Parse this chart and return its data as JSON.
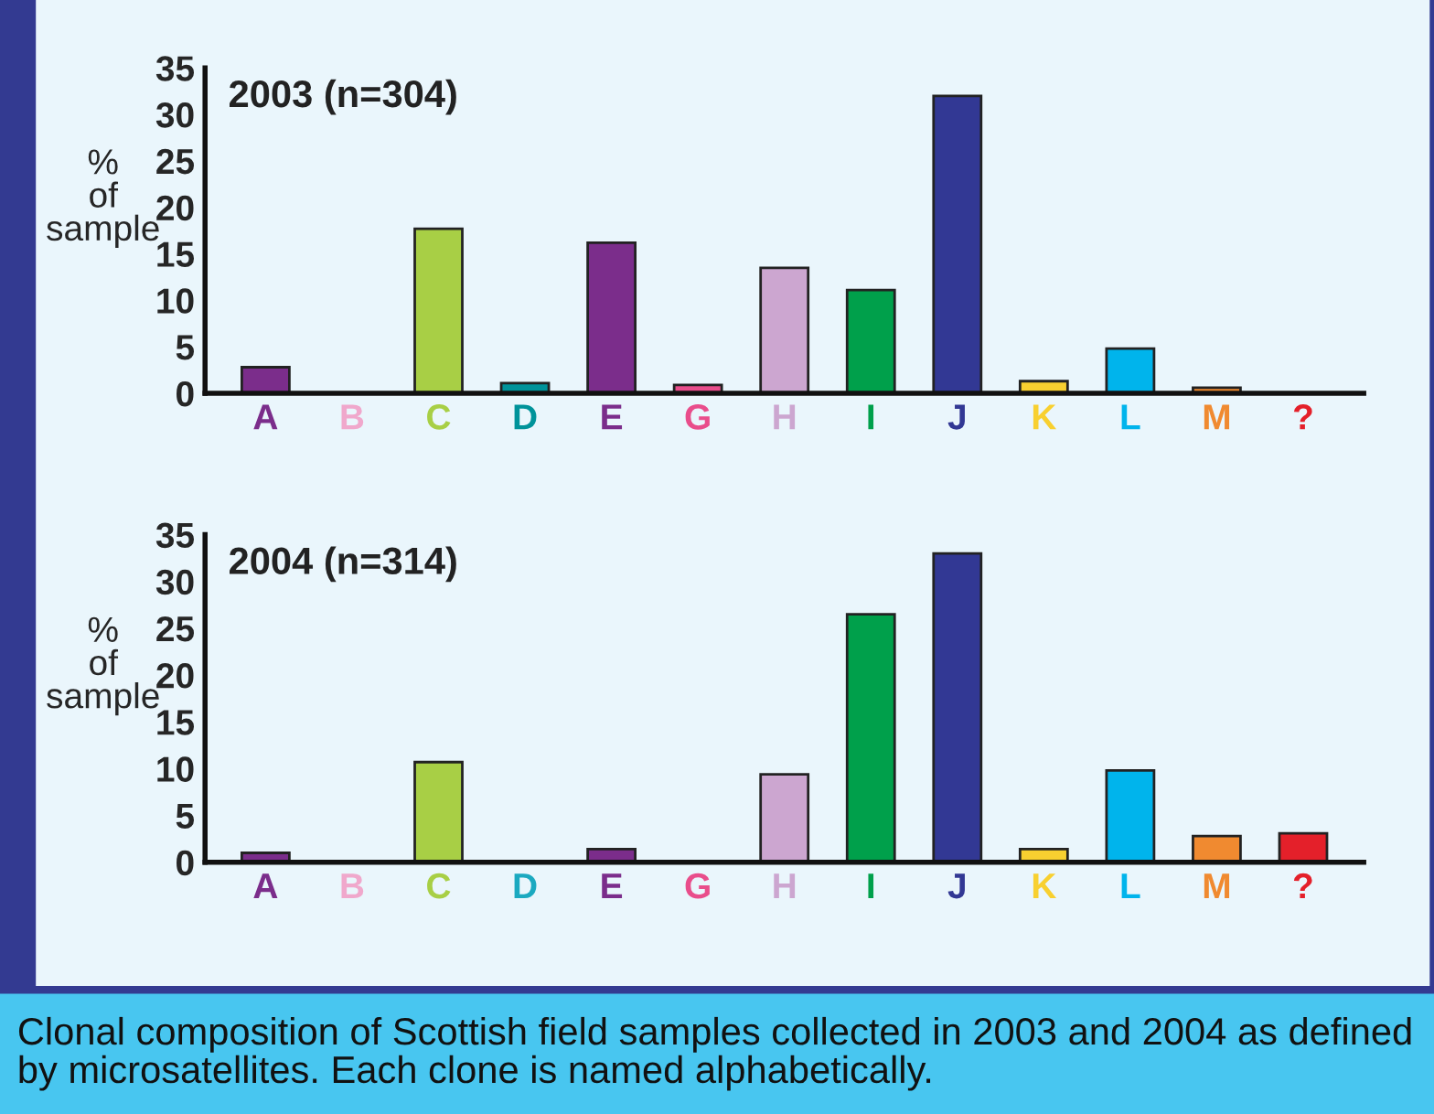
{
  "chart_data": [
    {
      "type": "bar",
      "title": "2003 (n=304)",
      "ylabel": "% of sample",
      "categories": [
        "A",
        "B",
        "C",
        "D",
        "E",
        "G",
        "H",
        "I",
        "J",
        "K",
        "L",
        "M",
        "?"
      ],
      "values": [
        2.8,
        0,
        17.7,
        1.1,
        16.2,
        0.9,
        13.5,
        11.1,
        32.0,
        1.3,
        4.8,
        0.6,
        0
      ],
      "colors": [
        "#7b2d8b",
        "#f0a8cc",
        "#a8cf45",
        "#00939a",
        "#7b2d8b",
        "#e94d8b",
        "#cca6d0",
        "#00a04b",
        "#323894",
        "#f8d030",
        "#00b4ec",
        "#f08a30",
        "#e4202a"
      ],
      "ylim": [
        0,
        35
      ],
      "yticks": [
        0,
        5,
        10,
        15,
        20,
        25,
        30,
        35
      ],
      "grid": false,
      "legend": false
    },
    {
      "type": "bar",
      "title": "2004 (n=314)",
      "ylabel": "% of sample",
      "categories": [
        "A",
        "B",
        "C",
        "D",
        "E",
        "G",
        "H",
        "I",
        "J",
        "K",
        "L",
        "M",
        "?"
      ],
      "values": [
        1.0,
        0,
        10.7,
        0,
        1.4,
        0,
        9.4,
        26.5,
        33.0,
        1.4,
        9.8,
        2.8,
        3.1
      ],
      "colors": [
        "#7b2d8b",
        "#f0a8cc",
        "#a8cf45",
        "#1ba9c0",
        "#7b2d8b",
        "#e94d8b",
        "#cca6d0",
        "#00a04b",
        "#323894",
        "#f8d030",
        "#00b4ec",
        "#f08a30",
        "#e4202a"
      ],
      "ylim": [
        0,
        35
      ],
      "yticks": [
        0,
        5,
        10,
        15,
        20,
        25,
        30,
        35
      ],
      "grid": false,
      "legend": false,
      "annotations": [
        "Clonal composition of Scottish field samples collected in 2003 and 2004 as defined by microsatellites. Each clone is named alphabetically."
      ]
    }
  ]
}
